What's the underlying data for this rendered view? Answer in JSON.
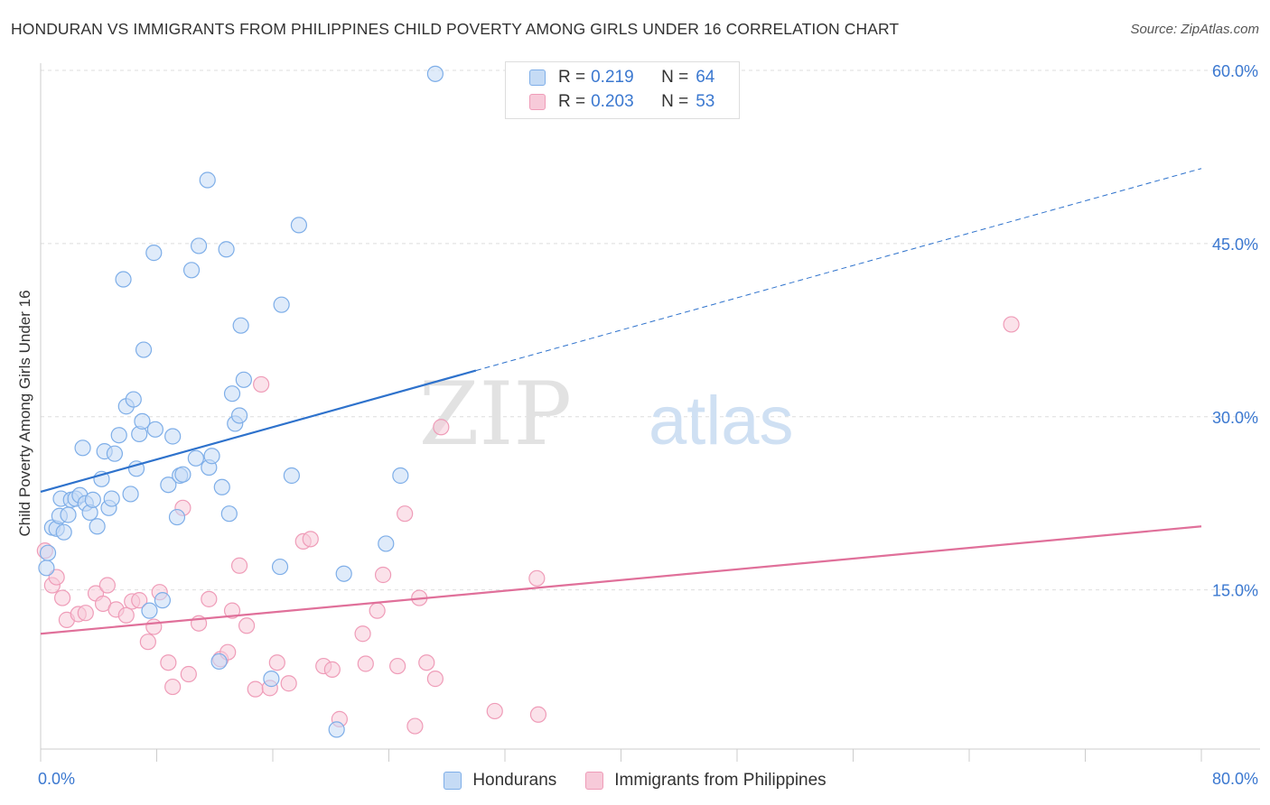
{
  "title": "HONDURAN VS IMMIGRANTS FROM PHILIPPINES CHILD POVERTY AMONG GIRLS UNDER 16 CORRELATION CHART",
  "source": "Source: ZipAtlas.com",
  "watermark": {
    "zip": "ZIP",
    "atlas": "atlas"
  },
  "legend": {
    "rows": [
      {
        "r_label": "R =",
        "r_value": "0.219",
        "n_label": "N =",
        "n_value": "64"
      },
      {
        "r_label": "R =",
        "r_value": "0.203",
        "n_label": "N =",
        "n_value": "53"
      }
    ]
  },
  "chart_data": {
    "type": "scatter",
    "title": "HONDURAN VS IMMIGRANTS FROM PHILIPPINES CHILD POVERTY AMONG GIRLS UNDER 16 CORRELATION CHART",
    "xlabel": "",
    "ylabel": "Child Poverty Among Girls Under 16",
    "xlim": [
      0,
      80
    ],
    "ylim": [
      0,
      62
    ],
    "x_tick_labels": [
      "0.0%",
      "80.0%"
    ],
    "y_ticks": [
      15,
      30,
      45,
      60
    ],
    "y_tick_labels": [
      "15.0%",
      "30.0%",
      "45.0%",
      "60.0%"
    ],
    "grid": true,
    "legend_position": "top-center",
    "series": [
      {
        "name": "Hondurans",
        "color": "#7eaee8",
        "fill": "#c5dbf5",
        "r": 0.219,
        "n": 64,
        "trend": {
          "x0": 0,
          "y0": 23.5,
          "x1": 30,
          "y1": 34.0,
          "dashed_to_x": 80,
          "dashed_to_y": 51.5,
          "color": "#2e72cc"
        },
        "points": [
          [
            0.4,
            16.9
          ],
          [
            0.5,
            18.2
          ],
          [
            0.8,
            20.4
          ],
          [
            1.1,
            20.3
          ],
          [
            1.3,
            21.4
          ],
          [
            1.4,
            22.9
          ],
          [
            1.6,
            20.0
          ],
          [
            1.9,
            21.5
          ],
          [
            2.1,
            22.8
          ],
          [
            2.4,
            22.9
          ],
          [
            2.7,
            23.2
          ],
          [
            2.9,
            27.3
          ],
          [
            3.1,
            22.5
          ],
          [
            3.4,
            21.7
          ],
          [
            3.6,
            22.8
          ],
          [
            3.9,
            20.5
          ],
          [
            4.2,
            24.6
          ],
          [
            4.4,
            27.0
          ],
          [
            4.7,
            22.1
          ],
          [
            4.9,
            22.9
          ],
          [
            5.1,
            26.8
          ],
          [
            5.4,
            28.4
          ],
          [
            5.7,
            41.9
          ],
          [
            5.9,
            30.9
          ],
          [
            6.2,
            23.3
          ],
          [
            6.4,
            31.5
          ],
          [
            6.6,
            25.5
          ],
          [
            6.8,
            28.5
          ],
          [
            7.0,
            29.6
          ],
          [
            7.1,
            35.8
          ],
          [
            7.5,
            13.2
          ],
          [
            7.8,
            44.2
          ],
          [
            7.9,
            28.9
          ],
          [
            8.4,
            14.1
          ],
          [
            8.8,
            24.1
          ],
          [
            9.1,
            28.3
          ],
          [
            9.4,
            21.3
          ],
          [
            9.6,
            24.9
          ],
          [
            9.8,
            25.0
          ],
          [
            10.4,
            42.7
          ],
          [
            10.7,
            26.4
          ],
          [
            10.9,
            44.8
          ],
          [
            11.5,
            50.5
          ],
          [
            11.6,
            25.6
          ],
          [
            11.8,
            26.6
          ],
          [
            12.3,
            8.8
          ],
          [
            12.5,
            23.9
          ],
          [
            12.8,
            44.5
          ],
          [
            13.0,
            21.6
          ],
          [
            13.2,
            32.0
          ],
          [
            13.4,
            29.4
          ],
          [
            13.7,
            30.1
          ],
          [
            13.8,
            37.9
          ],
          [
            14.0,
            33.2
          ],
          [
            16.5,
            17.0
          ],
          [
            16.6,
            39.7
          ],
          [
            15.9,
            7.3
          ],
          [
            17.3,
            24.9
          ],
          [
            17.8,
            46.6
          ],
          [
            20.4,
            2.9
          ],
          [
            20.9,
            16.4
          ],
          [
            23.8,
            19.0
          ],
          [
            24.8,
            24.9
          ],
          [
            27.2,
            59.7
          ]
        ]
      },
      {
        "name": "Immigrants from Philippines",
        "color": "#ef9cb8",
        "fill": "#f7cad9",
        "r": 0.203,
        "n": 53,
        "trend": {
          "x0": 0,
          "y0": 11.2,
          "x1": 80,
          "y1": 20.5,
          "color": "#e0709a"
        },
        "points": [
          [
            0.3,
            18.4
          ],
          [
            0.8,
            15.4
          ],
          [
            1.1,
            16.1
          ],
          [
            1.5,
            14.3
          ],
          [
            1.8,
            12.4
          ],
          [
            2.6,
            12.9
          ],
          [
            3.1,
            13.0
          ],
          [
            3.8,
            14.7
          ],
          [
            4.3,
            13.8
          ],
          [
            4.6,
            15.4
          ],
          [
            5.2,
            13.3
          ],
          [
            5.9,
            12.8
          ],
          [
            6.3,
            14.0
          ],
          [
            6.8,
            14.1
          ],
          [
            7.4,
            10.5
          ],
          [
            7.8,
            11.8
          ],
          [
            8.2,
            14.8
          ],
          [
            8.8,
            8.7
          ],
          [
            9.1,
            6.6
          ],
          [
            9.8,
            22.1
          ],
          [
            10.2,
            7.7
          ],
          [
            10.9,
            12.1
          ],
          [
            11.6,
            14.2
          ],
          [
            12.4,
            9.0
          ],
          [
            12.9,
            9.6
          ],
          [
            13.2,
            13.2
          ],
          [
            13.7,
            17.1
          ],
          [
            14.2,
            11.9
          ],
          [
            14.8,
            6.4
          ],
          [
            15.2,
            32.8
          ],
          [
            15.8,
            6.5
          ],
          [
            16.3,
            8.7
          ],
          [
            17.1,
            6.9
          ],
          [
            18.1,
            19.2
          ],
          [
            18.6,
            19.4
          ],
          [
            19.5,
            8.4
          ],
          [
            20.1,
            8.1
          ],
          [
            20.6,
            3.8
          ],
          [
            22.2,
            11.2
          ],
          [
            22.4,
            8.6
          ],
          [
            23.2,
            13.2
          ],
          [
            23.6,
            16.3
          ],
          [
            24.6,
            8.4
          ],
          [
            25.1,
            21.6
          ],
          [
            25.8,
            3.2
          ],
          [
            26.1,
            14.3
          ],
          [
            26.6,
            8.7
          ],
          [
            27.2,
            7.3
          ],
          [
            27.6,
            29.1
          ],
          [
            31.3,
            4.5
          ],
          [
            34.2,
            16.0
          ],
          [
            34.3,
            4.2
          ],
          [
            66.9,
            38.0
          ]
        ]
      }
    ]
  }
}
